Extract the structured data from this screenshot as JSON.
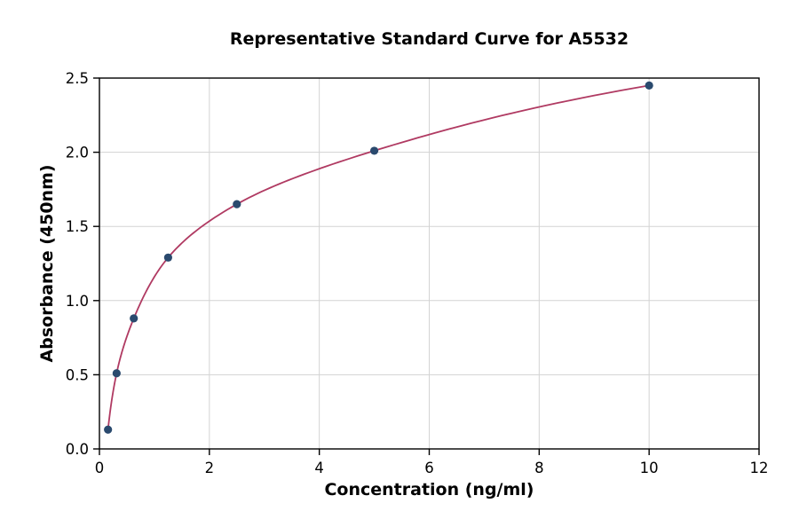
{
  "chart_data": {
    "type": "scatter",
    "title": "Representative Standard Curve for A5532",
    "xlabel": "Concentration (ng/ml)",
    "ylabel": "Absorbance (450nm)",
    "x": [
      0.156,
      0.3125,
      0.625,
      1.25,
      2.5,
      5,
      10
    ],
    "y": [
      0.13,
      0.51,
      0.88,
      1.29,
      1.65,
      2.01,
      2.45
    ],
    "fit_curve": true,
    "xlim": [
      0,
      12
    ],
    "ylim": [
      0,
      2.5
    ],
    "xticks": [
      0,
      2,
      4,
      6,
      8,
      10,
      12
    ],
    "xtick_labels": [
      "0",
      "2",
      "4",
      "6",
      "8",
      "10",
      "12"
    ],
    "yticks": [
      0,
      0.5,
      1.0,
      1.5,
      2.0,
      2.5
    ],
    "ytick_labels": [
      "0.0",
      "0.5",
      "1.0",
      "1.5",
      "2.0",
      "2.5"
    ],
    "grid": true,
    "legend": "none",
    "colors": {
      "curve": "#b03a62",
      "marker": "#2a4a6e",
      "grid": "#d3d3d3",
      "frame": "#000000",
      "background": "#ffffff"
    }
  }
}
